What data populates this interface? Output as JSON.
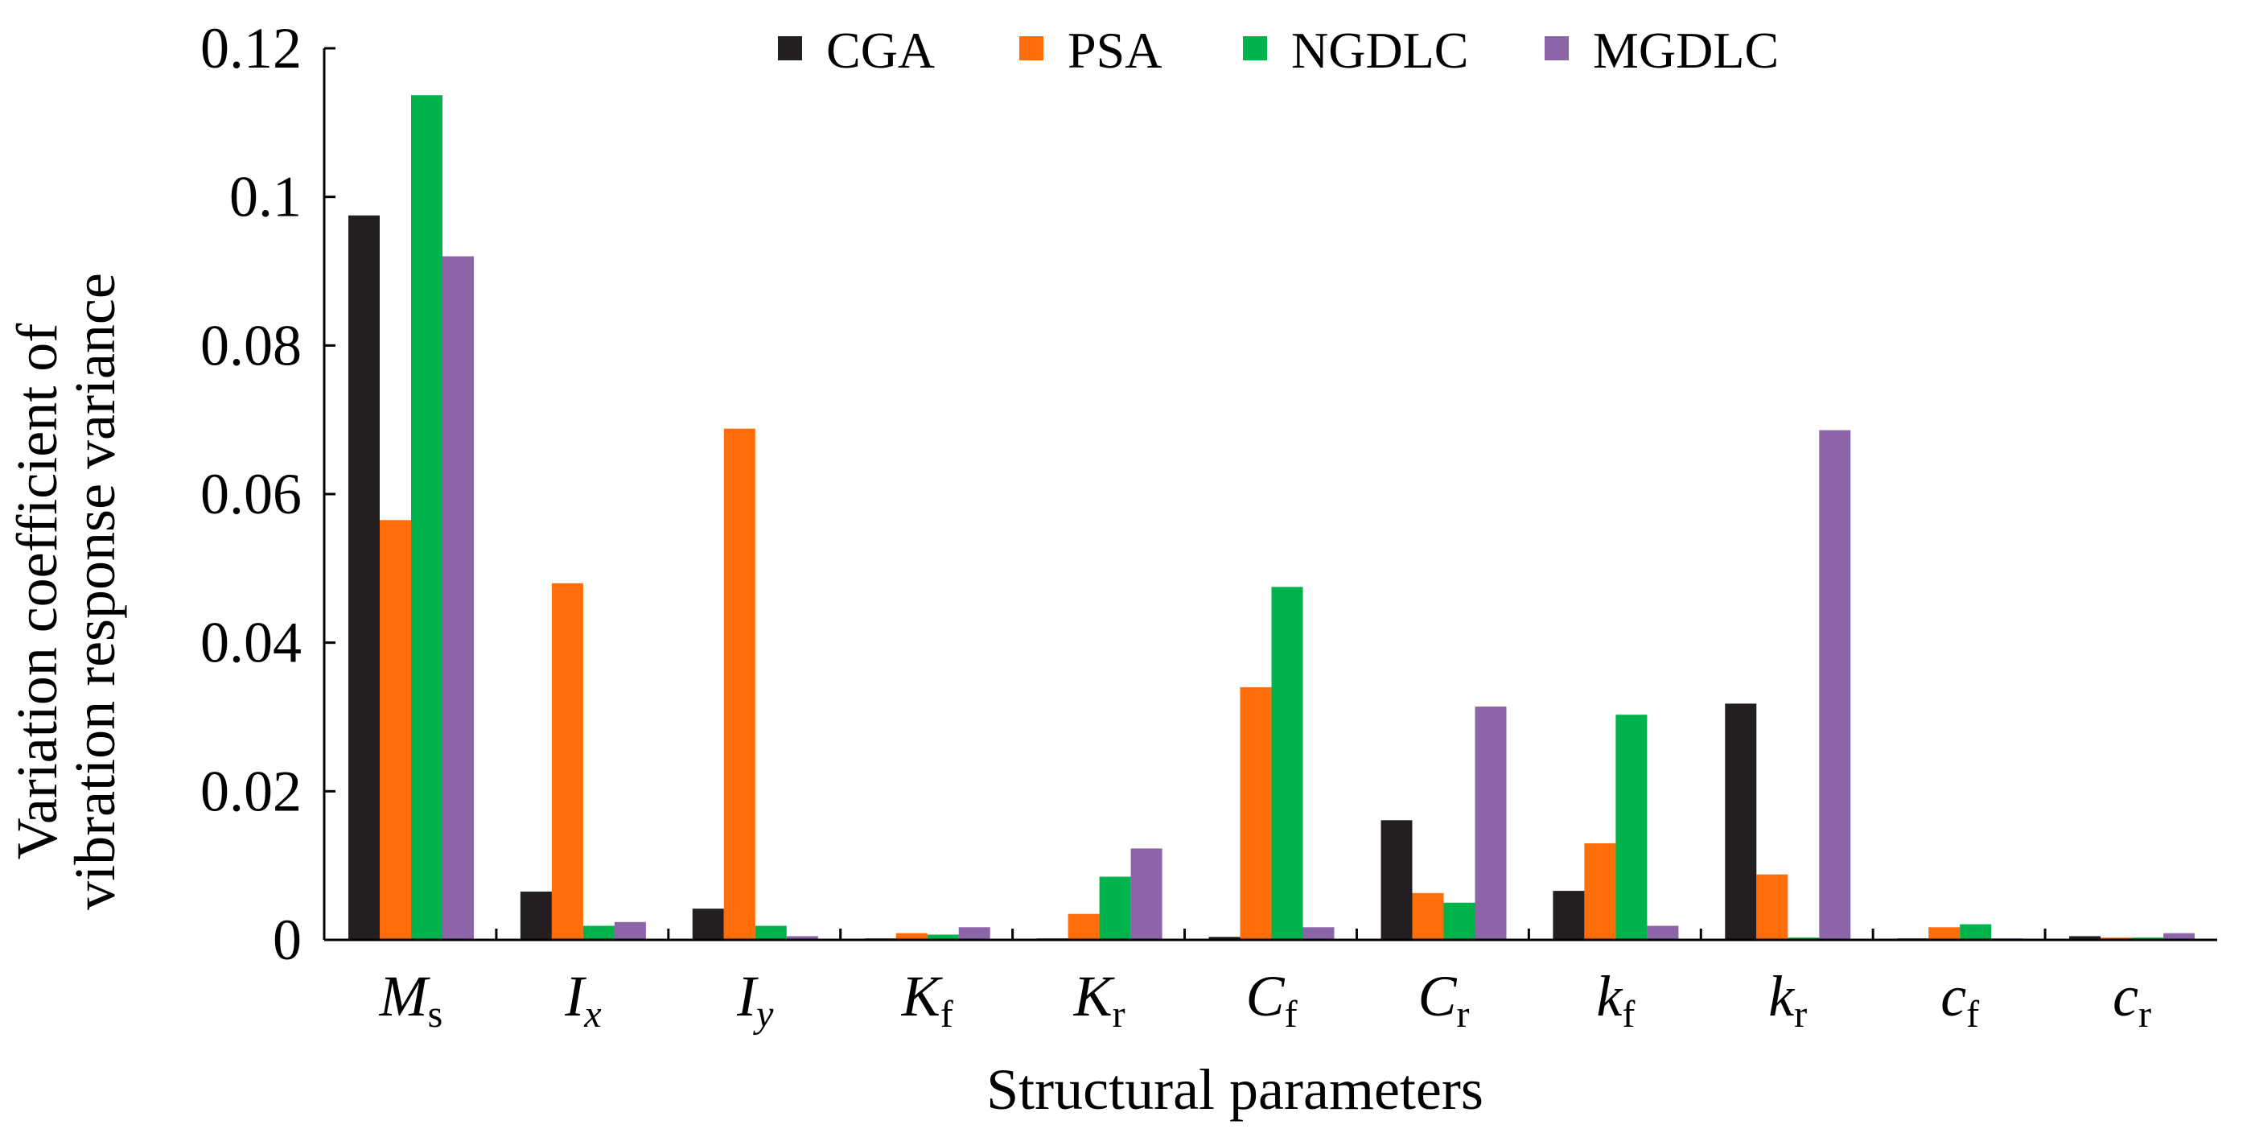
{
  "chart_data": {
    "type": "bar",
    "title": "",
    "xlabel": "Structural parameters",
    "ylabel_lines": [
      "Variation coefficient of",
      "vibration response variance"
    ],
    "ylim": [
      0,
      0.12
    ],
    "yticks": [
      {
        "value": 0,
        "label": "0"
      },
      {
        "value": 0.02,
        "label": "0.02"
      },
      {
        "value": 0.04,
        "label": "0.04"
      },
      {
        "value": 0.06,
        "label": "0.06"
      },
      {
        "value": 0.08,
        "label": "0.08"
      },
      {
        "value": 0.1,
        "label": "0.1"
      },
      {
        "value": 0.12,
        "label": "0.12"
      }
    ],
    "categories": [
      {
        "base": "M",
        "sub": "s",
        "italic_sub": false
      },
      {
        "base": "I",
        "sub": "x",
        "italic_sub": true
      },
      {
        "base": "I",
        "sub": "y",
        "italic_sub": true
      },
      {
        "base": "K",
        "sub": "f",
        "italic_sub": false
      },
      {
        "base": "K",
        "sub": "r",
        "italic_sub": false
      },
      {
        "base": "C",
        "sub": "f",
        "italic_sub": false
      },
      {
        "base": "C",
        "sub": "r",
        "italic_sub": false
      },
      {
        "base": "k",
        "sub": "f",
        "italic_sub": false
      },
      {
        "base": "k",
        "sub": "r",
        "italic_sub": false
      },
      {
        "base": "c",
        "sub": "f",
        "italic_sub": false
      },
      {
        "base": "c",
        "sub": "r",
        "italic_sub": false
      }
    ],
    "series": [
      {
        "name": "CGA",
        "color": "#231f20",
        "values": [
          0.0975,
          0.0065,
          0.0042,
          0.0002,
          0.0002,
          0.0004,
          0.0161,
          0.0066,
          0.0318,
          0.0002,
          0.0005
        ]
      },
      {
        "name": "PSA",
        "color": "#ff6d08",
        "values": [
          0.0565,
          0.048,
          0.0688,
          0.0009,
          0.0035,
          0.034,
          0.0063,
          0.013,
          0.0088,
          0.0017,
          0.0003
        ]
      },
      {
        "name": "NGDLC",
        "color": "#00b34a",
        "values": [
          0.1137,
          0.0019,
          0.0019,
          0.0007,
          0.0085,
          0.0475,
          0.005,
          0.0303,
          0.0003,
          0.0021,
          0.0003
        ]
      },
      {
        "name": "MGDLC",
        "color": "#8c64a8",
        "values": [
          0.092,
          0.0024,
          0.0005,
          0.0017,
          0.0123,
          0.0017,
          0.0314,
          0.0019,
          0.0686,
          0.0002,
          0.0009
        ]
      }
    ],
    "legend_position": "top-center",
    "grid": false
  }
}
